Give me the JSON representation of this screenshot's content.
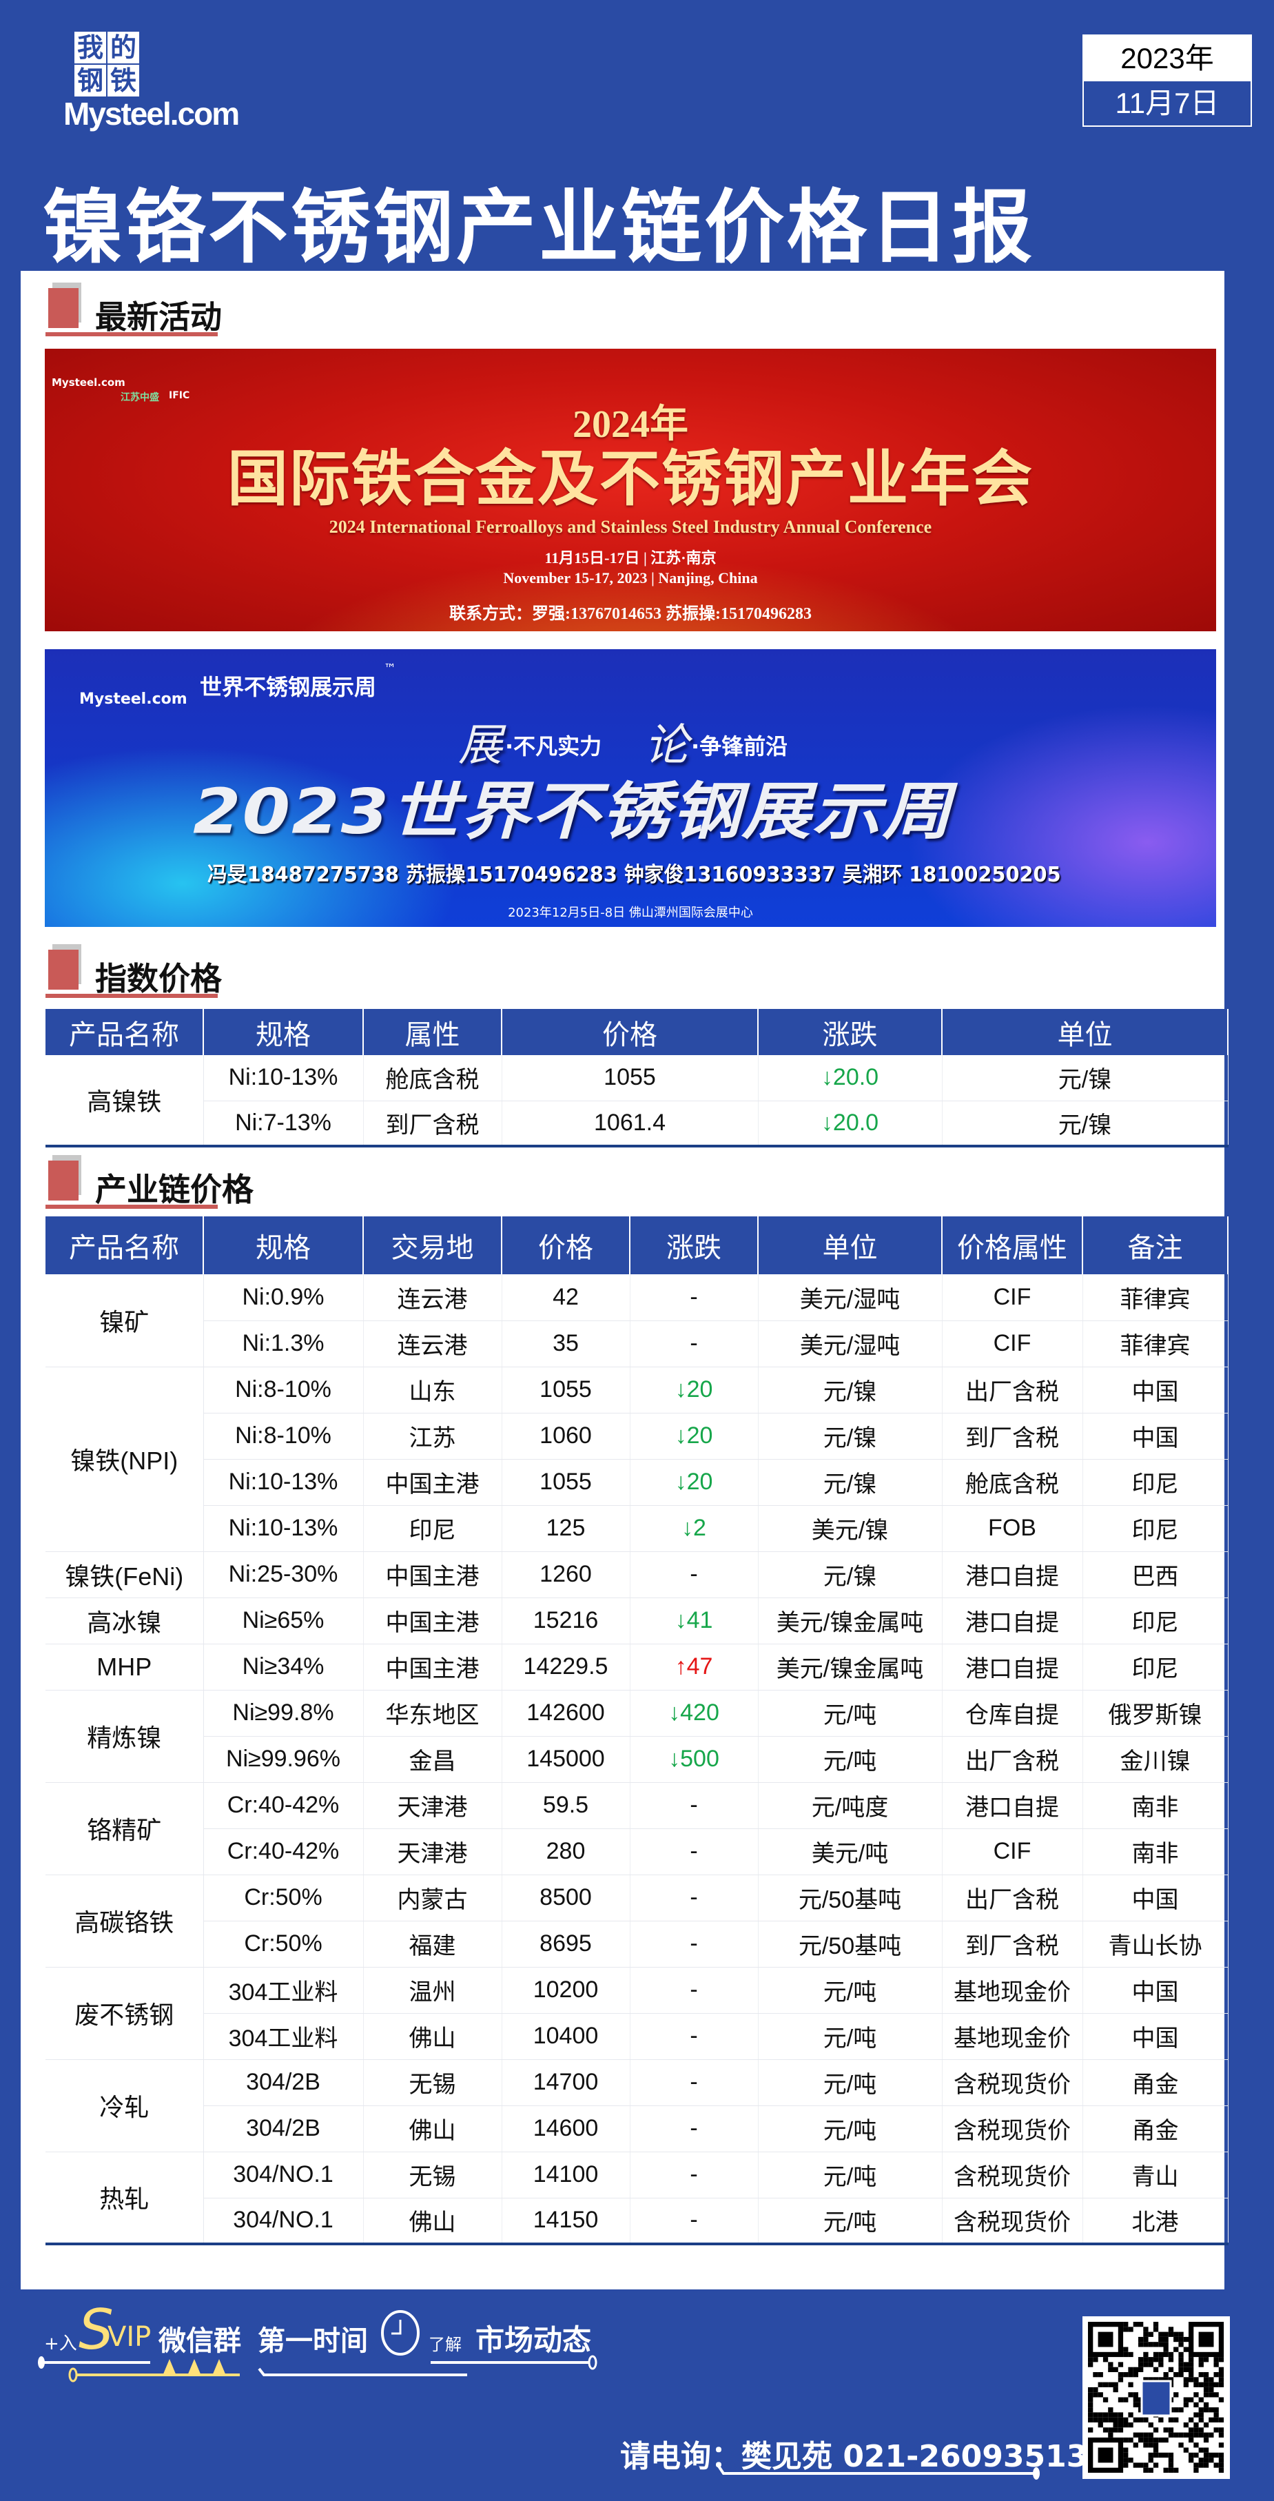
{
  "header": {
    "logo": {
      "cn": [
        "我",
        "的",
        "钢",
        "铁"
      ],
      "en": "Mysteel.com"
    },
    "date_year": "2023年",
    "date_day": "11月7日",
    "title": "镍铬不锈钢产业链价格日报"
  },
  "sections": {
    "activities": "最新活动",
    "index_price": "指数价格",
    "chain_price": "产业链价格"
  },
  "banner1": {
    "logos": [
      "Mysteel.com",
      "江苏中盛",
      "IFIC"
    ],
    "year": "2024年",
    "title": "国际铁合金及不锈钢产业年会",
    "english": "2024 International Ferroalloys and Stainless Steel Industry Annual Conference",
    "date_cn": "11月15日-17日 | 江苏·南京",
    "date_en": "November 15-17, 2023 | Nanjing, China",
    "contact": "联系方式：罗强:13767014653  苏振操:15170496283"
  },
  "banner2": {
    "logo": "Mysteel.com",
    "brand": "世界不锈钢展示周",
    "tm": "™",
    "slogan1_big": "展",
    "slogan1": "·不凡实力",
    "slogan2_big": "论",
    "slogan2": "·争锋前沿",
    "title": "2023世界不锈钢展示周",
    "contacts": "冯旻18487275738 苏振操15170496283 钟家俊13160933337 吴湘环 18100250205",
    "footer": "2023年12月5日-8日   佛山潭州国际会展中心"
  },
  "index_table": {
    "headers": [
      "产品名称",
      "规格",
      "属性",
      "价格",
      "涨跌",
      "单位"
    ],
    "product": "高镍铁",
    "rows": [
      [
        "Ni:10-13%",
        "舱底含税",
        "1055",
        "↓20.0",
        "元/镍"
      ],
      [
        "Ni:7-13%",
        "到厂含税",
        "1061.4",
        "↓20.0",
        "元/镍"
      ]
    ]
  },
  "chain_table": {
    "headers": [
      "产品名称",
      "规格",
      "交易地",
      "价格",
      "涨跌",
      "单位",
      "价格属性",
      "备注"
    ],
    "groups": [
      {
        "product": "镍矿",
        "rows": [
          [
            "Ni:0.9%",
            "连云港",
            "42",
            "-",
            "美元/湿吨",
            "CIF",
            "菲律宾"
          ],
          [
            "Ni:1.3%",
            "连云港",
            "35",
            "-",
            "美元/湿吨",
            "CIF",
            "菲律宾"
          ]
        ]
      },
      {
        "product": "镍铁(NPI)",
        "rows": [
          [
            "Ni:8-10%",
            "山东",
            "1055",
            "↓20",
            "元/镍",
            "出厂含税",
            "中国"
          ],
          [
            "Ni:8-10%",
            "江苏",
            "1060",
            "↓20",
            "元/镍",
            "到厂含税",
            "中国"
          ],
          [
            "Ni:10-13%",
            "中国主港",
            "1055",
            "↓20",
            "元/镍",
            "舱底含税",
            "印尼"
          ],
          [
            "Ni:10-13%",
            "印尼",
            "125",
            "↓2",
            "美元/镍",
            "FOB",
            "印尼"
          ]
        ]
      },
      {
        "product": "镍铁(FeNi)",
        "rows": [
          [
            "Ni:25-30%",
            "中国主港",
            "1260",
            "-",
            "元/镍",
            "港口自提",
            "巴西"
          ]
        ]
      },
      {
        "product": "高冰镍",
        "rows": [
          [
            "Ni≥65%",
            "中国主港",
            "15216",
            "↓41",
            "美元/镍金属吨",
            "港口自提",
            "印尼"
          ]
        ]
      },
      {
        "product": "MHP",
        "rows": [
          [
            "Ni≥34%",
            "中国主港",
            "14229.5",
            "↑47",
            "美元/镍金属吨",
            "港口自提",
            "印尼"
          ]
        ]
      },
      {
        "product": "精炼镍",
        "rows": [
          [
            "Ni≥99.8%",
            "华东地区",
            "142600",
            "↓420",
            "元/吨",
            "仓库自提",
            "俄罗斯镍"
          ],
          [
            "Ni≥99.96%",
            "金昌",
            "145000",
            "↓500",
            "元/吨",
            "出厂含税",
            "金川镍"
          ]
        ]
      },
      {
        "product": "铬精矿",
        "rows": [
          [
            "Cr:40-42%",
            "天津港",
            "59.5",
            "-",
            "元/吨度",
            "港口自提",
            "南非"
          ],
          [
            "Cr:40-42%",
            "天津港",
            "280",
            "-",
            "美元/吨",
            "CIF",
            "南非"
          ]
        ]
      },
      {
        "product": "高碳铬铁",
        "rows": [
          [
            "Cr:50%",
            "内蒙古",
            "8500",
            "-",
            "元/50基吨",
            "出厂含税",
            "中国"
          ],
          [
            "Cr:50%",
            "福建",
            "8695",
            "-",
            "元/50基吨",
            "到厂含税",
            "青山长协"
          ]
        ]
      },
      {
        "product": "废不锈钢",
        "rows": [
          [
            "304工业料",
            "温州",
            "10200",
            "-",
            "元/吨",
            "基地现金价",
            "中国"
          ],
          [
            "304工业料",
            "佛山",
            "10400",
            "-",
            "元/吨",
            "基地现金价",
            "中国"
          ]
        ]
      },
      {
        "product": "冷轧",
        "rows": [
          [
            "304/2B",
            "无锡",
            "14700",
            "-",
            "元/吨",
            "含税现货价",
            "甬金"
          ],
          [
            "304/2B",
            "佛山",
            "14600",
            "-",
            "元/吨",
            "含税现货价",
            "甬金"
          ]
        ]
      },
      {
        "product": "热轧",
        "rows": [
          [
            "304/NO.1",
            "无锡",
            "14100",
            "-",
            "元/吨",
            "含税现货价",
            "青山"
          ],
          [
            "304/NO.1",
            "佛山",
            "14150",
            "-",
            "元/吨",
            "含税现货价",
            "北港"
          ]
        ]
      }
    ]
  },
  "footer": {
    "join": "+入",
    "s": "S",
    "vip": "VIP",
    "wechat": "微信群",
    "first_time": "第一时间",
    "learn": "了解",
    "market": "市场动态",
    "contact": "请电询：樊见苑  021-26093513"
  },
  "colors": {
    "background": "#2a4ba4",
    "header_cell": "#2a4ba4",
    "down": "#16a64a",
    "up": "#e51515",
    "section_mark": "#c95a57",
    "vip_yellow": "#ffe07a"
  }
}
